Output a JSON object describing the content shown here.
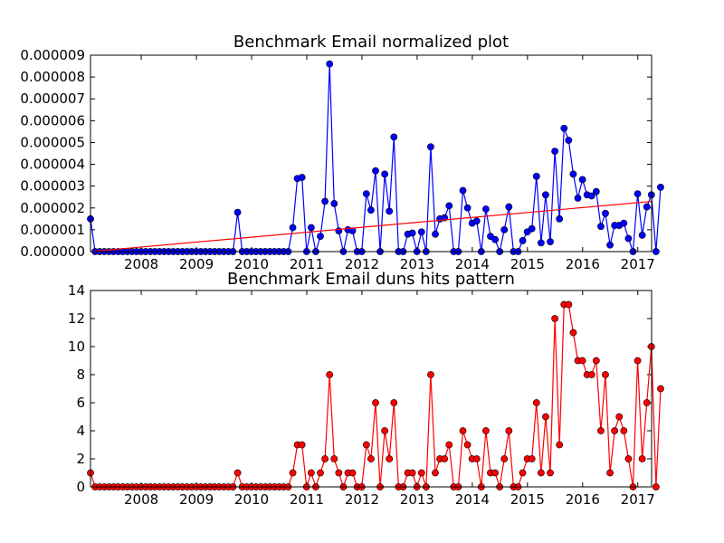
{
  "chart_data": [
    {
      "type": "line",
      "title": "Benchmark Email normalized plot",
      "xlabel": "",
      "ylabel": "",
      "xlim": [
        2007.08,
        2017.25
      ],
      "ylim": [
        0,
        9e-06
      ],
      "x_ticks": [
        "2008",
        "2009",
        "2010",
        "2011",
        "2012",
        "2013",
        "2014",
        "2015",
        "2016",
        "2017"
      ],
      "y_ticks": [
        "0.000000",
        "0.000001",
        "0.000002",
        "0.000003",
        "0.000004",
        "0.000005",
        "0.000006",
        "0.000007",
        "0.000008",
        "0.000009"
      ],
      "grid": false,
      "series": [
        {
          "color": "#0000ff",
          "marker": "circle",
          "start": 2007.08,
          "step_months": 1,
          "values_e6": [
            1.5,
            0,
            0,
            0,
            0,
            0,
            0,
            0,
            0,
            0,
            0,
            0,
            0,
            0,
            0,
            0,
            0,
            0,
            0,
            0,
            0,
            0,
            0,
            0,
            0,
            0,
            0,
            0,
            0,
            0,
            0,
            0,
            1.8,
            0,
            0,
            0,
            0,
            0,
            0,
            0,
            0,
            0,
            0,
            0,
            1.1,
            3.35,
            3.4,
            0,
            1.1,
            0,
            0.7,
            2.3,
            8.6,
            2.2,
            0.95,
            0,
            1.0,
            0.95,
            0,
            0,
            2.65,
            1.9,
            3.7,
            0,
            3.55,
            1.85,
            5.25,
            0,
            0,
            0.8,
            0.85,
            0,
            0.9,
            0,
            4.8,
            0.8,
            1.5,
            1.55,
            2.1,
            0,
            0,
            2.8,
            2.0,
            1.3,
            1.4,
            0,
            1.95,
            0.7,
            0.55,
            0,
            1.0,
            2.05,
            0,
            0,
            0.5,
            0.9,
            1.05,
            3.45,
            0.4,
            2.6,
            0.45,
            4.6,
            1.5,
            5.65,
            5.1,
            3.55,
            2.45,
            3.3,
            2.6,
            2.55,
            2.75,
            1.15,
            1.75,
            0.3,
            1.2,
            1.2,
            1.3,
            0.6,
            0,
            2.65,
            0.75,
            2.05,
            2.6,
            0,
            2.95
          ]
        },
        {
          "color": "#ff0000",
          "marker": "none",
          "x": [
            2007.08,
            2017.25
          ],
          "values_e6": [
            0.0,
            2.3
          ]
        }
      ]
    },
    {
      "type": "line",
      "title": "Benchmark Email duns hits pattern",
      "xlabel": "",
      "ylabel": "",
      "xlim": [
        2007.08,
        2017.25
      ],
      "ylim": [
        0,
        14
      ],
      "x_ticks": [
        "2008",
        "2009",
        "2010",
        "2011",
        "2012",
        "2013",
        "2014",
        "2015",
        "2016",
        "2017"
      ],
      "y_ticks": [
        "0",
        "2",
        "4",
        "6",
        "8",
        "10",
        "12",
        "14"
      ],
      "grid": false,
      "series": [
        {
          "color": "#ff0000",
          "marker": "circle",
          "start": 2007.08,
          "step_months": 1,
          "values": [
            1,
            0,
            0,
            0,
            0,
            0,
            0,
            0,
            0,
            0,
            0,
            0,
            0,
            0,
            0,
            0,
            0,
            0,
            0,
            0,
            0,
            0,
            0,
            0,
            0,
            0,
            0,
            0,
            0,
            0,
            0,
            0,
            1,
            0,
            0,
            0,
            0,
            0,
            0,
            0,
            0,
            0,
            0,
            0,
            1,
            3,
            3,
            0,
            1,
            0,
            1,
            2,
            8,
            2,
            1,
            0,
            1,
            1,
            0,
            0,
            3,
            2,
            6,
            0,
            4,
            2,
            6,
            0,
            0,
            1,
            1,
            0,
            1,
            0,
            8,
            1,
            2,
            2,
            3,
            0,
            0,
            4,
            3,
            2,
            2,
            0,
            4,
            1,
            1,
            0,
            2,
            4,
            0,
            0,
            1,
            2,
            2,
            6,
            1,
            5,
            1,
            12,
            3,
            13,
            13,
            11,
            9,
            9,
            8,
            8,
            9,
            4,
            8,
            1,
            4,
            5,
            4,
            2,
            0,
            9,
            2,
            6,
            10,
            0,
            7
          ]
        }
      ]
    }
  ]
}
